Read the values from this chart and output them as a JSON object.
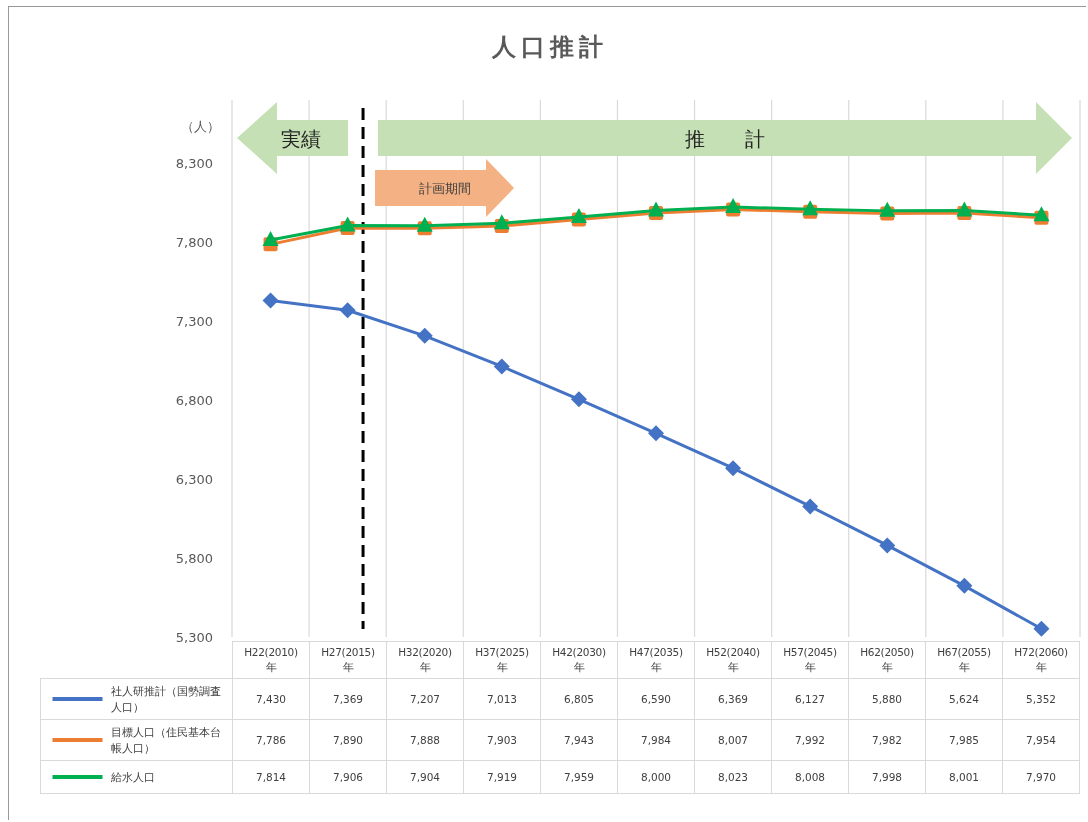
{
  "chart_data": {
    "type": "line",
    "title": "人口推計",
    "ylabel": "（人）",
    "categories": [
      "H22(2010)年",
      "H27(2015)年",
      "H32(2020)年",
      "H37(2025)年",
      "H42(2030)年",
      "H47(2035)年",
      "H52(2040)年",
      "H57(2045)年",
      "H62(2050)年",
      "H67(2055)年",
      "H72(2060)年"
    ],
    "series": [
      {
        "name": "社人研推計（国勢調査人口）",
        "color": "#4472c4",
        "marker": "diamond",
        "values": [
          7430,
          7369,
          7207,
          7013,
          6805,
          6590,
          6369,
          6127,
          5880,
          5624,
          5352
        ],
        "value_labels": [
          "7,430",
          "7,369",
          "7,207",
          "7,013",
          "6,805",
          "6,590",
          "6,369",
          "6,127",
          "5,880",
          "5,624",
          "5,352"
        ]
      },
      {
        "name": "目標人口（住民基本台帳人口）",
        "color": "#ed7d31",
        "marker": "square",
        "values": [
          7786,
          7890,
          7888,
          7903,
          7943,
          7984,
          8007,
          7992,
          7982,
          7985,
          7954
        ],
        "value_labels": [
          "7,786",
          "7,890",
          "7,888",
          "7,903",
          "7,943",
          "7,984",
          "8,007",
          "7,992",
          "7,982",
          "7,985",
          "7,954"
        ]
      },
      {
        "name": "給水人口",
        "color": "#00b050",
        "marker": "triangle",
        "values": [
          7814,
          7906,
          7904,
          7919,
          7959,
          8000,
          8023,
          8008,
          7998,
          8001,
          7970
        ],
        "value_labels": [
          "7,814",
          "7,906",
          "7,904",
          "7,919",
          "7,959",
          "8,000",
          "8,023",
          "8,008",
          "7,998",
          "8,001",
          "7,970"
        ]
      }
    ],
    "ylim": [
      5300,
      8700
    ],
    "yticks": [
      {
        "value": 5300,
        "label": "5,300"
      },
      {
        "value": 5800,
        "label": "5,800"
      },
      {
        "value": 6300,
        "label": "6,300"
      },
      {
        "value": 6800,
        "label": "6,800"
      },
      {
        "value": 7300,
        "label": "7,300"
      },
      {
        "value": 7800,
        "label": "7,800"
      },
      {
        "value": 8300,
        "label": "8,300"
      }
    ],
    "grid": "x",
    "legend": "bottom",
    "line_style": "solid",
    "ref_lines": [
      {
        "axis": "x",
        "value": "H27(2015)年",
        "color": "#000000",
        "line_style": "dashed"
      }
    ],
    "annotations": [
      "実績",
      "推　　計",
      "計画期間"
    ]
  }
}
